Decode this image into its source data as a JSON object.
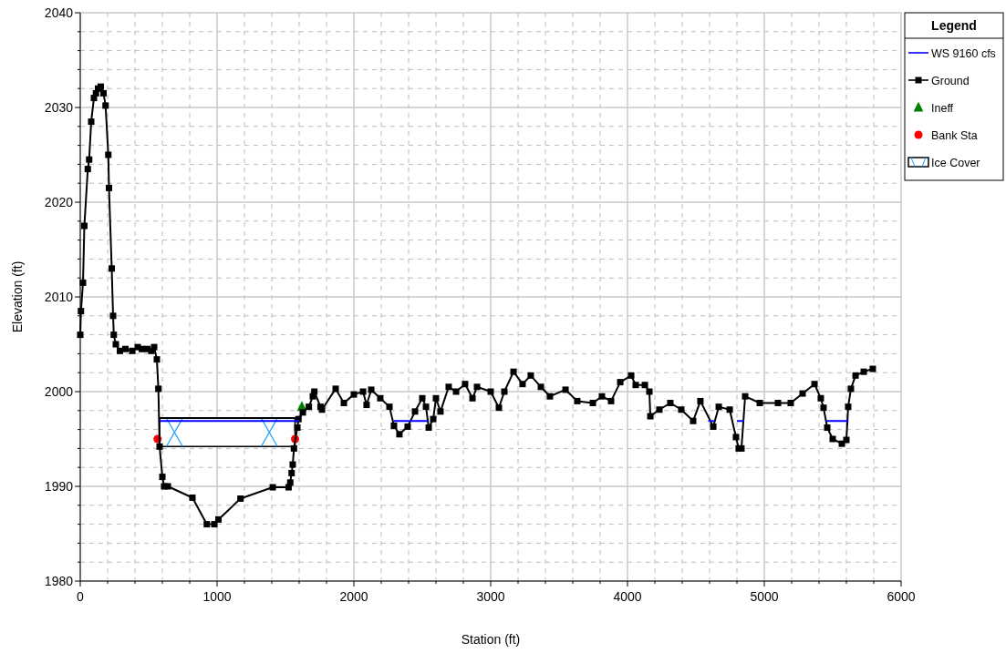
{
  "chart_data": {
    "type": "line",
    "xlabel": "Station (ft)",
    "ylabel": "Elevation (ft)",
    "legend_title": "Legend",
    "legend": "right",
    "grid": true,
    "xlim": [
      0,
      6000
    ],
    "ylim": [
      1980,
      2040
    ],
    "xticks": [
      0,
      {
        "value": 200,
        "label": null
      },
      {
        "value": 400,
        "label": null
      },
      {
        "value": 600,
        "label": null
      },
      {
        "value": 800,
        "label": null
      },
      1000,
      {
        "value": 1200,
        "label": null
      },
      {
        "value": 1400,
        "label": null
      },
      {
        "value": 1600,
        "label": null
      },
      {
        "value": 1800,
        "label": null
      },
      2000,
      {
        "value": 2200,
        "label": null
      },
      {
        "value": 2400,
        "label": null
      },
      {
        "value": 2600,
        "label": null
      },
      {
        "value": 2800,
        "label": null
      },
      3000,
      {
        "value": 3200,
        "label": null
      },
      {
        "value": 3400,
        "label": null
      },
      {
        "value": 3600,
        "label": null
      },
      {
        "value": 3800,
        "label": null
      },
      4000,
      {
        "value": 4200,
        "label": null
      },
      {
        "value": 4400,
        "label": null
      },
      {
        "value": 4600,
        "label": null
      },
      {
        "value": 4800,
        "label": null
      },
      5000,
      {
        "value": 5200,
        "label": null
      },
      {
        "value": 5400,
        "label": null
      },
      {
        "value": 5600,
        "label": null
      },
      {
        "value": 5800,
        "label": null
      },
      6000
    ],
    "yticks": [
      1980,
      {
        "value": 1982,
        "label": null
      },
      {
        "value": 1984,
        "label": null
      },
      {
        "value": 1986,
        "label": null
      },
      {
        "value": 1988,
        "label": null
      },
      1990,
      {
        "value": 1992,
        "label": null
      },
      {
        "value": 1994,
        "label": null
      },
      {
        "value": 1996,
        "label": null
      },
      {
        "value": 1998,
        "label": null
      },
      2000,
      {
        "value": 2002,
        "label": null
      },
      {
        "value": 2004,
        "label": null
      },
      {
        "value": 2006,
        "label": null
      },
      {
        "value": 2008,
        "label": null
      },
      2010,
      {
        "value": 2012,
        "label": null
      },
      {
        "value": 2014,
        "label": null
      },
      {
        "value": 2016,
        "label": null
      },
      {
        "value": 2018,
        "label": null
      },
      2020,
      {
        "value": 2022,
        "label": null
      },
      {
        "value": 2024,
        "label": null
      },
      {
        "value": 2026,
        "label": null
      },
      {
        "value": 2028,
        "label": null
      },
      2030,
      {
        "value": 2032,
        "label": null
      },
      {
        "value": 2034,
        "label": null
      },
      {
        "value": 2036,
        "label": null
      },
      {
        "value": 2038,
        "label": null
      },
      2040
    ],
    "series": [
      {
        "name": "WS 9160 cfs",
        "color": "#0000ff",
        "marker": "none",
        "x": [
          580,
          1600,
          1900,
          2290,
          2540,
          4000,
          4590,
          4633,
          4700,
          4800,
          4850,
          5000,
          5450,
          5615
        ],
        "values": [
          1996.9,
          1996.9,
          null,
          1996.9,
          1996.9,
          null,
          1996.9,
          1996.9,
          null,
          1996.9,
          1996.9,
          null,
          1996.9,
          1996.9
        ]
      },
      {
        "name": "Ground",
        "color": "#000000",
        "marker": "square",
        "x": [
          0,
          5,
          20,
          30,
          55,
          65,
          80,
          100,
          115,
          130,
          150,
          170,
          185,
          205,
          210,
          230,
          240,
          245,
          260,
          290,
          330,
          380,
          420,
          450,
          490,
          520,
          540,
          560,
          571,
          580,
          600,
          613,
          640,
          820,
          925,
          980,
          1010,
          1171,
          1407,
          1523,
          1535,
          1545,
          1553,
          1562,
          1587,
          1595,
          1627,
          1671,
          1700,
          1711,
          1756,
          1767,
          1867,
          1927,
          2000,
          2067,
          2093,
          2127,
          2193,
          2260,
          2293,
          2333,
          2393,
          2447,
          2500,
          2527,
          2547,
          2580,
          2600,
          2633,
          2693,
          2747,
          2813,
          2867,
          2900,
          3000,
          3060,
          3100,
          3167,
          3233,
          3293,
          3367,
          3433,
          3547,
          3633,
          3747,
          3813,
          3880,
          3947,
          4027,
          4060,
          4127,
          4160,
          4167,
          4233,
          4313,
          4393,
          4480,
          4533,
          4627,
          4667,
          4747,
          4793,
          4813,
          4833,
          4860,
          4967,
          5100,
          5193,
          5280,
          5367,
          5413,
          5433,
          5460,
          5500,
          5567,
          5600,
          5613,
          5633,
          5667,
          5727,
          5793
        ],
        "values": [
          2006,
          2008.5,
          2011.5,
          2017.5,
          2023.5,
          2024.5,
          2028.5,
          2031,
          2031.5,
          2032,
          2032.2,
          2031.5,
          2030.2,
          2025,
          2021.5,
          2013,
          2008,
          2006,
          2005,
          2004.3,
          2004.5,
          2004.3,
          2004.7,
          2004.5,
          2004.5,
          2004.3,
          2004.7,
          2003.4,
          2000.3,
          1994.2,
          1991,
          1990,
          1990,
          1988.8,
          1986,
          1986,
          1986.5,
          1988.7,
          1989.9,
          1989.9,
          1990.4,
          1991.4,
          1992.3,
          1994,
          1996.2,
          1997.1,
          1997.8,
          1998.4,
          1999.5,
          2000,
          1998.4,
          1998.1,
          2000.3,
          1998.8,
          1999.7,
          2000,
          1998.6,
          2000.2,
          1999.3,
          1998.4,
          1996.4,
          1995.5,
          1996.3,
          1997.9,
          1999.3,
          1998.4,
          1996.2,
          1997.1,
          1999.3,
          1997.9,
          2000.5,
          2000,
          2000.8,
          1999.3,
          2000.5,
          2000,
          1998.3,
          2000,
          2002.1,
          2000.8,
          2001.7,
          2000.5,
          1999.5,
          2000.2,
          1999,
          1998.8,
          1999.5,
          1999,
          2001,
          2001.7,
          2000.7,
          2000.7,
          2000,
          1997.4,
          1998.1,
          1998.8,
          1998.1,
          1996.9,
          1999,
          1996.3,
          1998.4,
          1998.1,
          1995.2,
          1994,
          1994,
          1999.5,
          1998.8,
          1998.8,
          1998.8,
          1999.8,
          2000.8,
          1999.3,
          1998.3,
          1996.2,
          1995,
          1994.5,
          1994.9,
          1998.4,
          2000.3,
          2001.7,
          2002.1,
          2002.4
        ]
      },
      {
        "name": "Ineff",
        "type": "scatter",
        "color": "#008000",
        "marker": "triangle",
        "x": [
          1620
        ],
        "values": [
          1998.4
        ]
      },
      {
        "name": "Bank Sta",
        "type": "scatter",
        "color": "#ff0000",
        "marker": "circle",
        "x": [
          565,
          1570
        ],
        "values": [
          1995,
          1995
        ]
      },
      {
        "name": "Ice Cover",
        "color": "#000000",
        "marker": "none",
        "x": [
          580,
          1570
        ],
        "values": [
          1997.2,
          1997.2
        ],
        "upper": [
          1997.2,
          1997.2
        ],
        "lower": [
          1994.2,
          1994.2
        ]
      }
    ]
  }
}
